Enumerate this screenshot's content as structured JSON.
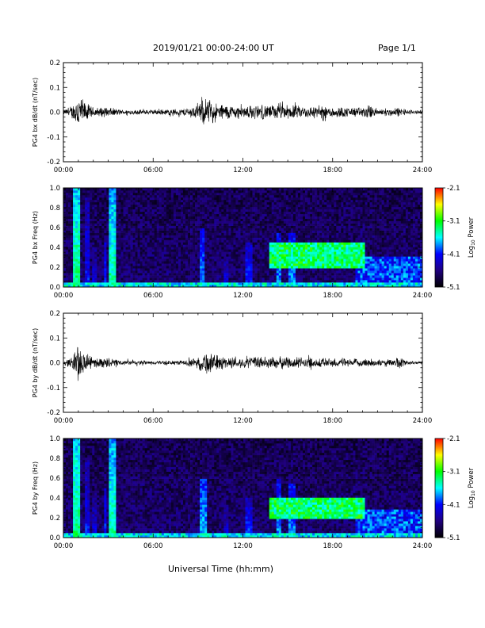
{
  "header": {
    "title": "2019/01/21  00:00-24:00 UT",
    "page": "Page 1/1"
  },
  "xaxis_title": "Universal Time (hh:mm)",
  "colorbar": {
    "label": "Log10 Power",
    "ticks": [
      "-2.1",
      "-3.1",
      "-4.1",
      "-5.1"
    ],
    "colors": [
      "#ff0000",
      "#ffff00",
      "#00ff00",
      "#00ffff",
      "#0000ff",
      "#20007f",
      "#000000"
    ]
  },
  "chart_data": [
    {
      "type": "line",
      "ylabel": "PG4 bx dB/dt (nT/sec)",
      "xlim": [
        0,
        24
      ],
      "ylim": [
        -0.2,
        0.2
      ],
      "xticks": [
        "00:00",
        "06:00",
        "12:00",
        "18:00",
        "24:00"
      ],
      "yticks": [
        "0.2",
        "0.1",
        "0.0",
        "-0.1",
        "-0.2"
      ],
      "series": [
        {
          "x": [
            0,
            0.5,
            0.8,
            1.0,
            1.2,
            1.5,
            2.0,
            3.0,
            3.5,
            4.0,
            6.0,
            8.0,
            9.0,
            9.5,
            10.0,
            11.0,
            12.0,
            13.0,
            14.0,
            15.0,
            16.0,
            17.0,
            18.0,
            19.0,
            20.0,
            20.5,
            21.0,
            22.0,
            22.3,
            23.0,
            24.0
          ],
          "amplitude": [
            0.01,
            0.02,
            0.05,
            0.09,
            0.06,
            0.04,
            0.02,
            0.02,
            0.015,
            0.01,
            0.01,
            0.015,
            0.03,
            0.06,
            0.04,
            0.03,
            0.025,
            0.03,
            0.03,
            0.03,
            0.025,
            0.025,
            0.025,
            0.02,
            0.02,
            0.03,
            0.015,
            0.015,
            0.02,
            0.01,
            0.008
          ]
        }
      ]
    },
    {
      "type": "heatmap",
      "ylabel": "PG4 bx Freq (Hz)",
      "xlim": [
        0,
        24
      ],
      "ylim": [
        0,
        1.0
      ],
      "xticks": [
        "00:00",
        "06:00",
        "12:00",
        "18:00",
        "24:00"
      ],
      "yticks": [
        "1.0",
        "0.8",
        "0.6",
        "0.4",
        "0.2",
        "0.0"
      ],
      "zlim": [
        -5.1,
        -2.1
      ],
      "zlabel": "Log10 Power",
      "features": [
        {
          "kind": "vertical",
          "t": 0.9,
          "width": 0.3,
          "fmax": 1.0,
          "power": -3.3
        },
        {
          "kind": "vertical",
          "t": 1.6,
          "width": 0.1,
          "fmax": 0.9,
          "power": -4.1
        },
        {
          "kind": "vertical",
          "t": 2.1,
          "width": 0.1,
          "fmax": 0.4,
          "power": -4.2
        },
        {
          "kind": "vertical",
          "t": 2.8,
          "width": 0.15,
          "fmax": 0.5,
          "power": -4.0
        },
        {
          "kind": "vertical",
          "t": 3.3,
          "width": 0.25,
          "fmax": 1.0,
          "power": -3.4
        },
        {
          "kind": "vertical",
          "t": 9.3,
          "width": 0.25,
          "fmax": 0.6,
          "power": -3.8
        },
        {
          "kind": "vertical",
          "t": 10.9,
          "width": 0.15,
          "fmax": 0.3,
          "power": -4.2
        },
        {
          "kind": "vertical",
          "t": 12.4,
          "width": 0.2,
          "fmax": 0.45,
          "power": -4.0
        },
        {
          "kind": "vertical",
          "t": 14.4,
          "width": 0.2,
          "fmax": 0.55,
          "power": -3.8
        },
        {
          "kind": "vertical",
          "t": 15.3,
          "width": 0.2,
          "fmax": 0.55,
          "power": -3.8
        },
        {
          "kind": "band",
          "t0": 13.8,
          "t1": 20.2,
          "f0": 0.2,
          "f1": 0.45,
          "power": -3.3
        },
        {
          "kind": "band",
          "t0": 19.5,
          "t1": 24.0,
          "f0": 0.05,
          "f1": 0.3,
          "power": -4.0
        },
        {
          "kind": "floor",
          "t0": 0,
          "t1": 24.0,
          "fmax": 0.05,
          "power": -3.6
        }
      ]
    },
    {
      "type": "line",
      "ylabel": "PG4 by dB/dt (nT/sec)",
      "xlim": [
        0,
        24
      ],
      "ylim": [
        -0.2,
        0.2
      ],
      "xticks": [
        "00:00",
        "06:00",
        "12:00",
        "18:00",
        "24:00"
      ],
      "yticks": [
        "0.2",
        "0.1",
        "0.0",
        "-0.1",
        "-0.2"
      ],
      "series": [
        {
          "x": [
            0,
            0.5,
            0.8,
            1.0,
            1.2,
            1.5,
            2.0,
            3.0,
            3.5,
            4.0,
            6.0,
            8.0,
            9.0,
            9.5,
            10.0,
            11.0,
            12.0,
            13.0,
            14.0,
            15.0,
            16.0,
            17.0,
            18.0,
            19.0,
            20.0,
            20.5,
            21.0,
            22.0,
            22.3,
            23.0,
            24.0
          ],
          "amplitude": [
            0.01,
            0.02,
            0.05,
            0.1,
            0.06,
            0.035,
            0.02,
            0.02,
            0.015,
            0.01,
            0.008,
            0.01,
            0.02,
            0.05,
            0.035,
            0.025,
            0.02,
            0.025,
            0.025,
            0.025,
            0.02,
            0.02,
            0.02,
            0.015,
            0.015,
            0.02,
            0.012,
            0.012,
            0.03,
            0.008,
            0.006
          ]
        }
      ]
    },
    {
      "type": "heatmap",
      "ylabel": "PG4 by Freq (Hz)",
      "xlim": [
        0,
        24
      ],
      "ylim": [
        0,
        1.0
      ],
      "xticks": [
        "00:00",
        "06:00",
        "12:00",
        "18:00",
        "24:00"
      ],
      "yticks": [
        "1.0",
        "0.8",
        "0.6",
        "0.4",
        "0.2",
        "0.0"
      ],
      "zlim": [
        -5.1,
        -2.1
      ],
      "zlabel": "Log10 Power",
      "features": [
        {
          "kind": "vertical",
          "t": 0.9,
          "width": 0.35,
          "fmax": 1.0,
          "power": -3.3
        },
        {
          "kind": "vertical",
          "t": 1.6,
          "width": 0.1,
          "fmax": 0.8,
          "power": -4.1
        },
        {
          "kind": "vertical",
          "t": 2.1,
          "width": 0.1,
          "fmax": 0.4,
          "power": -4.2
        },
        {
          "kind": "vertical",
          "t": 2.8,
          "width": 0.15,
          "fmax": 0.5,
          "power": -4.0
        },
        {
          "kind": "vertical",
          "t": 3.3,
          "width": 0.25,
          "fmax": 1.0,
          "power": -3.4
        },
        {
          "kind": "vertical",
          "t": 9.3,
          "width": 0.3,
          "fmax": 0.6,
          "power": -3.7
        },
        {
          "kind": "vertical",
          "t": 10.9,
          "width": 0.15,
          "fmax": 0.3,
          "power": -4.2
        },
        {
          "kind": "vertical",
          "t": 12.4,
          "width": 0.2,
          "fmax": 0.4,
          "power": -4.0
        },
        {
          "kind": "vertical",
          "t": 14.4,
          "width": 0.2,
          "fmax": 0.6,
          "power": -3.8
        },
        {
          "kind": "vertical",
          "t": 15.3,
          "width": 0.2,
          "fmax": 0.55,
          "power": -3.8
        },
        {
          "kind": "band",
          "t0": 13.8,
          "t1": 20.2,
          "f0": 0.18,
          "f1": 0.4,
          "power": -3.3
        },
        {
          "kind": "band",
          "t0": 19.5,
          "t1": 24.0,
          "f0": 0.05,
          "f1": 0.28,
          "power": -4.0
        },
        {
          "kind": "floor",
          "t0": 0,
          "t1": 24.0,
          "fmax": 0.05,
          "power": -3.6
        }
      ]
    }
  ]
}
